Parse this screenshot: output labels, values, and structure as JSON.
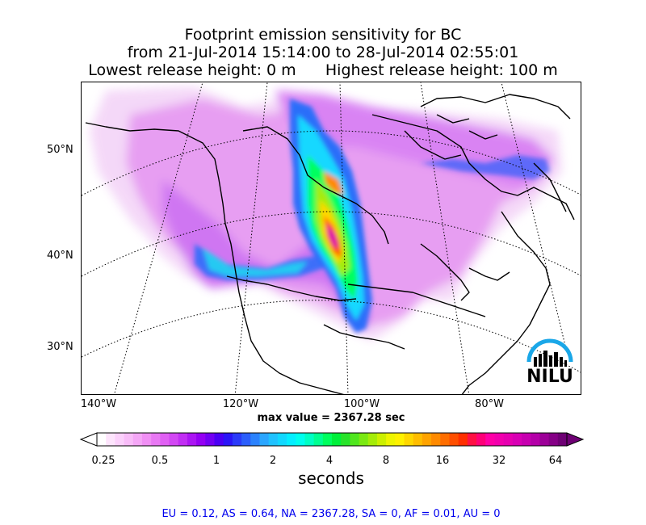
{
  "title": {
    "line1": "Footprint emission sensitivity for BC",
    "line2": "from 21-Jul-2014 15:14:00 to 28-Jul-2014 02:55:01",
    "line3": "Lowest release height: 0 m      Highest release height: 100 m"
  },
  "map": {
    "lat_labels": [
      "50°N",
      "40°N",
      "30°N"
    ],
    "lon_labels": [
      "140°W",
      "120°W",
      "100°W",
      "80°W"
    ],
    "max_value": "max value = 2367.28 sec",
    "logo_text": "NILU"
  },
  "colorbar": {
    "tick_labels": [
      "0.25",
      "0.5",
      "1",
      "2",
      "4",
      "8",
      "16",
      "32",
      "64"
    ],
    "units": "seconds",
    "colors": [
      "#ffffff",
      "#fde4fc",
      "#fbd0fb",
      "#f8bcf8",
      "#f4a6f6",
      "#f08ff4",
      "#e878f3",
      "#e060f3",
      "#d247f3",
      "#c12ef3",
      "#ab15f3",
      "#9400f3",
      "#7200f3",
      "#4b00f4",
      "#2b15f7",
      "#2b3af9",
      "#2b5efb",
      "#2b82fd",
      "#2ba6ff",
      "#20c2ff",
      "#12d8ff",
      "#05eeff",
      "#00ffee",
      "#00ffc4",
      "#00ff92",
      "#00ff5e",
      "#00f03a",
      "#28e32a",
      "#50e61e",
      "#7ae912",
      "#a4ec08",
      "#ccf000",
      "#eef500",
      "#fff100",
      "#ffd700",
      "#ffbd00",
      "#ffa300",
      "#ff8a00",
      "#ff6e00",
      "#ff4f00",
      "#ff2f00",
      "#ff1044",
      "#ff0078",
      "#ff00a6",
      "#f200ad",
      "#e600b0",
      "#d800b4",
      "#c700b0",
      "#b400a8",
      "#9c0098",
      "#850086",
      "#6e0074"
    ]
  },
  "stats": "EU = 0.12,  AS = 0.64,  NA = 2367.28,  SA = 0,  AF = 0.01,  AU = 0"
}
